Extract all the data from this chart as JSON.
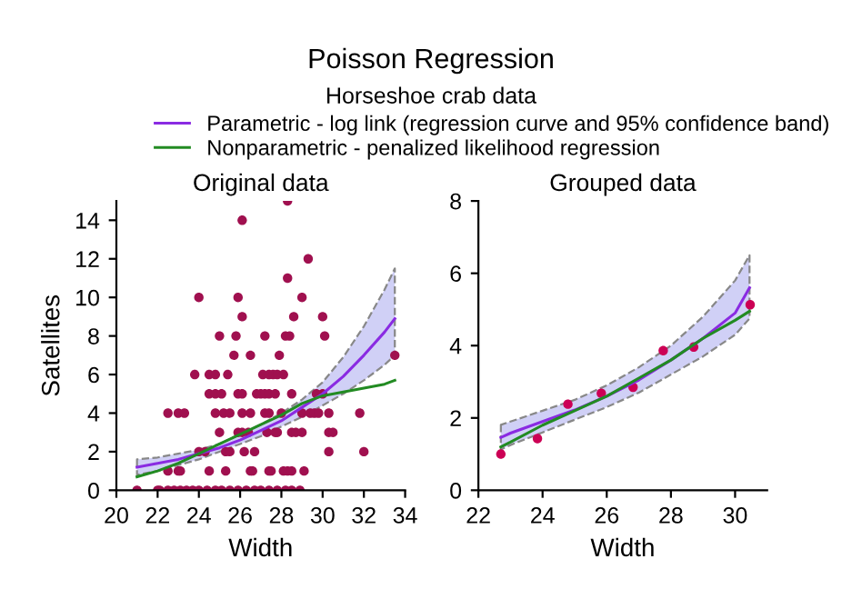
{
  "chart_data": [
    {
      "type": "scatter",
      "title": "Original data",
      "xlabel": "Width",
      "ylabel": "Satellites",
      "annotations": [
        "Poisson Regression",
        "Horseshoe crab data"
      ],
      "xlim": [
        20,
        34
      ],
      "xticks": [
        20,
        22,
        24,
        26,
        28,
        30,
        32,
        34
      ],
      "ylim": [
        0,
        15
      ],
      "yticks": [
        0,
        2,
        4,
        6,
        8,
        10,
        12,
        14
      ],
      "grid": false,
      "legend": "top",
      "line_style": "solid",
      "series": [
        {
          "marker": "circle",
          "color": "#a0104f",
          "x": [
            21.0,
            22.0,
            22.1,
            22.5,
            22.8,
            23.1,
            23.4,
            23.7,
            24.0,
            24.4,
            24.8,
            25.1,
            25.5,
            25.9,
            26.3,
            26.7,
            27.0,
            27.4,
            27.8,
            28.2,
            28.5,
            28.9,
            22.5,
            23.0,
            23.3,
            22.5,
            23.0,
            23.1,
            24.0,
            23.8,
            24.0,
            24.3,
            24.5,
            24.5,
            24.8,
            24.5,
            24.8,
            25.1,
            25.0,
            24.8,
            25.2,
            25.5,
            25.0,
            25.3,
            25.5,
            25.3,
            25.4,
            25.8,
            25.7,
            25.9,
            26.1,
            26.1,
            25.9,
            26.1,
            26.1,
            25.9,
            26.1,
            26.4,
            26.2,
            26.5,
            26.6,
            26.5,
            26.5,
            26.7,
            26.8,
            27.0,
            27.2,
            27.1,
            27.4,
            27.6,
            27.8,
            28.1,
            27.2,
            27.4,
            27.7,
            27.2,
            27.4,
            27.3,
            27.7,
            27.8,
            27.4,
            27.5,
            27.9,
            28.0,
            28.3,
            28.3,
            28.2,
            28.4,
            28.5,
            28.6,
            28.5,
            28.7,
            29.0,
            28.1,
            28.3,
            28.5,
            29.0,
            29.4,
            29.6,
            29.0,
            29.3,
            29.1,
            29.7,
            30.0,
            30.0,
            30.1,
            29.8,
            30.3,
            30.3,
            30.3,
            30.5,
            31.8,
            32.0,
            33.5
          ],
          "values": [
            0,
            0,
            0,
            0,
            0,
            0,
            0,
            0,
            0,
            0,
            0,
            0,
            0,
            0,
            0,
            0,
            0,
            0,
            0,
            0,
            0,
            0,
            4,
            4,
            4,
            1,
            1,
            1,
            10,
            6,
            2,
            2,
            1,
            6,
            6,
            5,
            5,
            5,
            8,
            4,
            4,
            4,
            3,
            2,
            2,
            1,
            6,
            8,
            7,
            10,
            14,
            9,
            5,
            5,
            4,
            3,
            3,
            3,
            2,
            1,
            1,
            7,
            4,
            2,
            5,
            5,
            8,
            6,
            6,
            6,
            6,
            6,
            5,
            5,
            5,
            4,
            4,
            3,
            3,
            3,
            1,
            1,
            7,
            4,
            11,
            15,
            8,
            8,
            5,
            9,
            3,
            3,
            3,
            1,
            1,
            1,
            4,
            4,
            4,
            10,
            12,
            1,
            5,
            5,
            9,
            8,
            4,
            4,
            2,
            3,
            3,
            4,
            2,
            7
          ]
        },
        {
          "type": "line",
          "name": "Parametric - log link (regression curve and 95% confidence band)",
          "color": "#8a2be2",
          "x": [
            21,
            22,
            23,
            24,
            25,
            26,
            27,
            28,
            29,
            30,
            31,
            32,
            33,
            33.5
          ],
          "values": [
            1.2,
            1.4,
            1.6,
            1.9,
            2.2,
            2.6,
            3.1,
            3.6,
            4.3,
            5.0,
            5.9,
            7.0,
            8.2,
            8.9
          ],
          "lower": [
            0.8,
            1.0,
            1.3,
            1.6,
            2.0,
            2.4,
            2.8,
            3.3,
            3.8,
            4.4,
            5.0,
            5.7,
            6.5,
            7.0
          ],
          "upper": [
            1.6,
            1.7,
            1.9,
            2.1,
            2.4,
            2.9,
            3.4,
            4.0,
            4.7,
            5.6,
            6.9,
            8.5,
            10.4,
            11.5
          ]
        },
        {
          "type": "line",
          "name": "Nonparametric - penalized likelihood regression",
          "color": "#228b22",
          "x": [
            21,
            22,
            23,
            24,
            25,
            26,
            27,
            28,
            29,
            30,
            31,
            32,
            33,
            33.5
          ],
          "values": [
            0.7,
            1.0,
            1.4,
            1.9,
            2.4,
            2.9,
            3.4,
            3.9,
            4.5,
            4.9,
            5.1,
            5.3,
            5.5,
            5.7
          ]
        }
      ]
    },
    {
      "type": "scatter",
      "title": "Grouped data",
      "xlabel": "Width",
      "xlim": [
        22,
        31
      ],
      "xticks": [
        22,
        24,
        26,
        28,
        30
      ],
      "ylim": [
        0,
        8
      ],
      "yticks": [
        0,
        2,
        4,
        6,
        8
      ],
      "grid": false,
      "line_style": "solid",
      "series": [
        {
          "marker": "circle",
          "color": "#cc0055",
          "x": [
            22.7,
            23.84,
            24.79,
            25.83,
            26.82,
            27.76,
            28.71,
            30.47
          ],
          "values": [
            1.0,
            1.43,
            2.38,
            2.68,
            2.85,
            3.86,
            3.96,
            5.13
          ]
        },
        {
          "type": "line",
          "color": "#8a2be2",
          "x": [
            22.7,
            23,
            24,
            25,
            26,
            27,
            28,
            29,
            30,
            30.45
          ],
          "values": [
            1.46,
            1.58,
            1.9,
            2.22,
            2.6,
            3.05,
            3.6,
            4.2,
            4.9,
            5.6
          ],
          "lower": [
            1.13,
            1.25,
            1.6,
            1.95,
            2.3,
            2.7,
            3.2,
            3.7,
            4.3,
            4.75
          ],
          "upper": [
            1.81,
            1.9,
            2.2,
            2.5,
            2.9,
            3.4,
            4.0,
            4.8,
            5.8,
            6.5
          ]
        },
        {
          "type": "line",
          "color": "#228b22",
          "x": [
            22.7,
            23,
            24,
            25,
            26,
            27,
            28,
            29,
            30,
            30.45
          ],
          "values": [
            1.2,
            1.33,
            1.8,
            2.2,
            2.6,
            3.1,
            3.6,
            4.2,
            4.7,
            4.95
          ]
        }
      ]
    }
  ]
}
